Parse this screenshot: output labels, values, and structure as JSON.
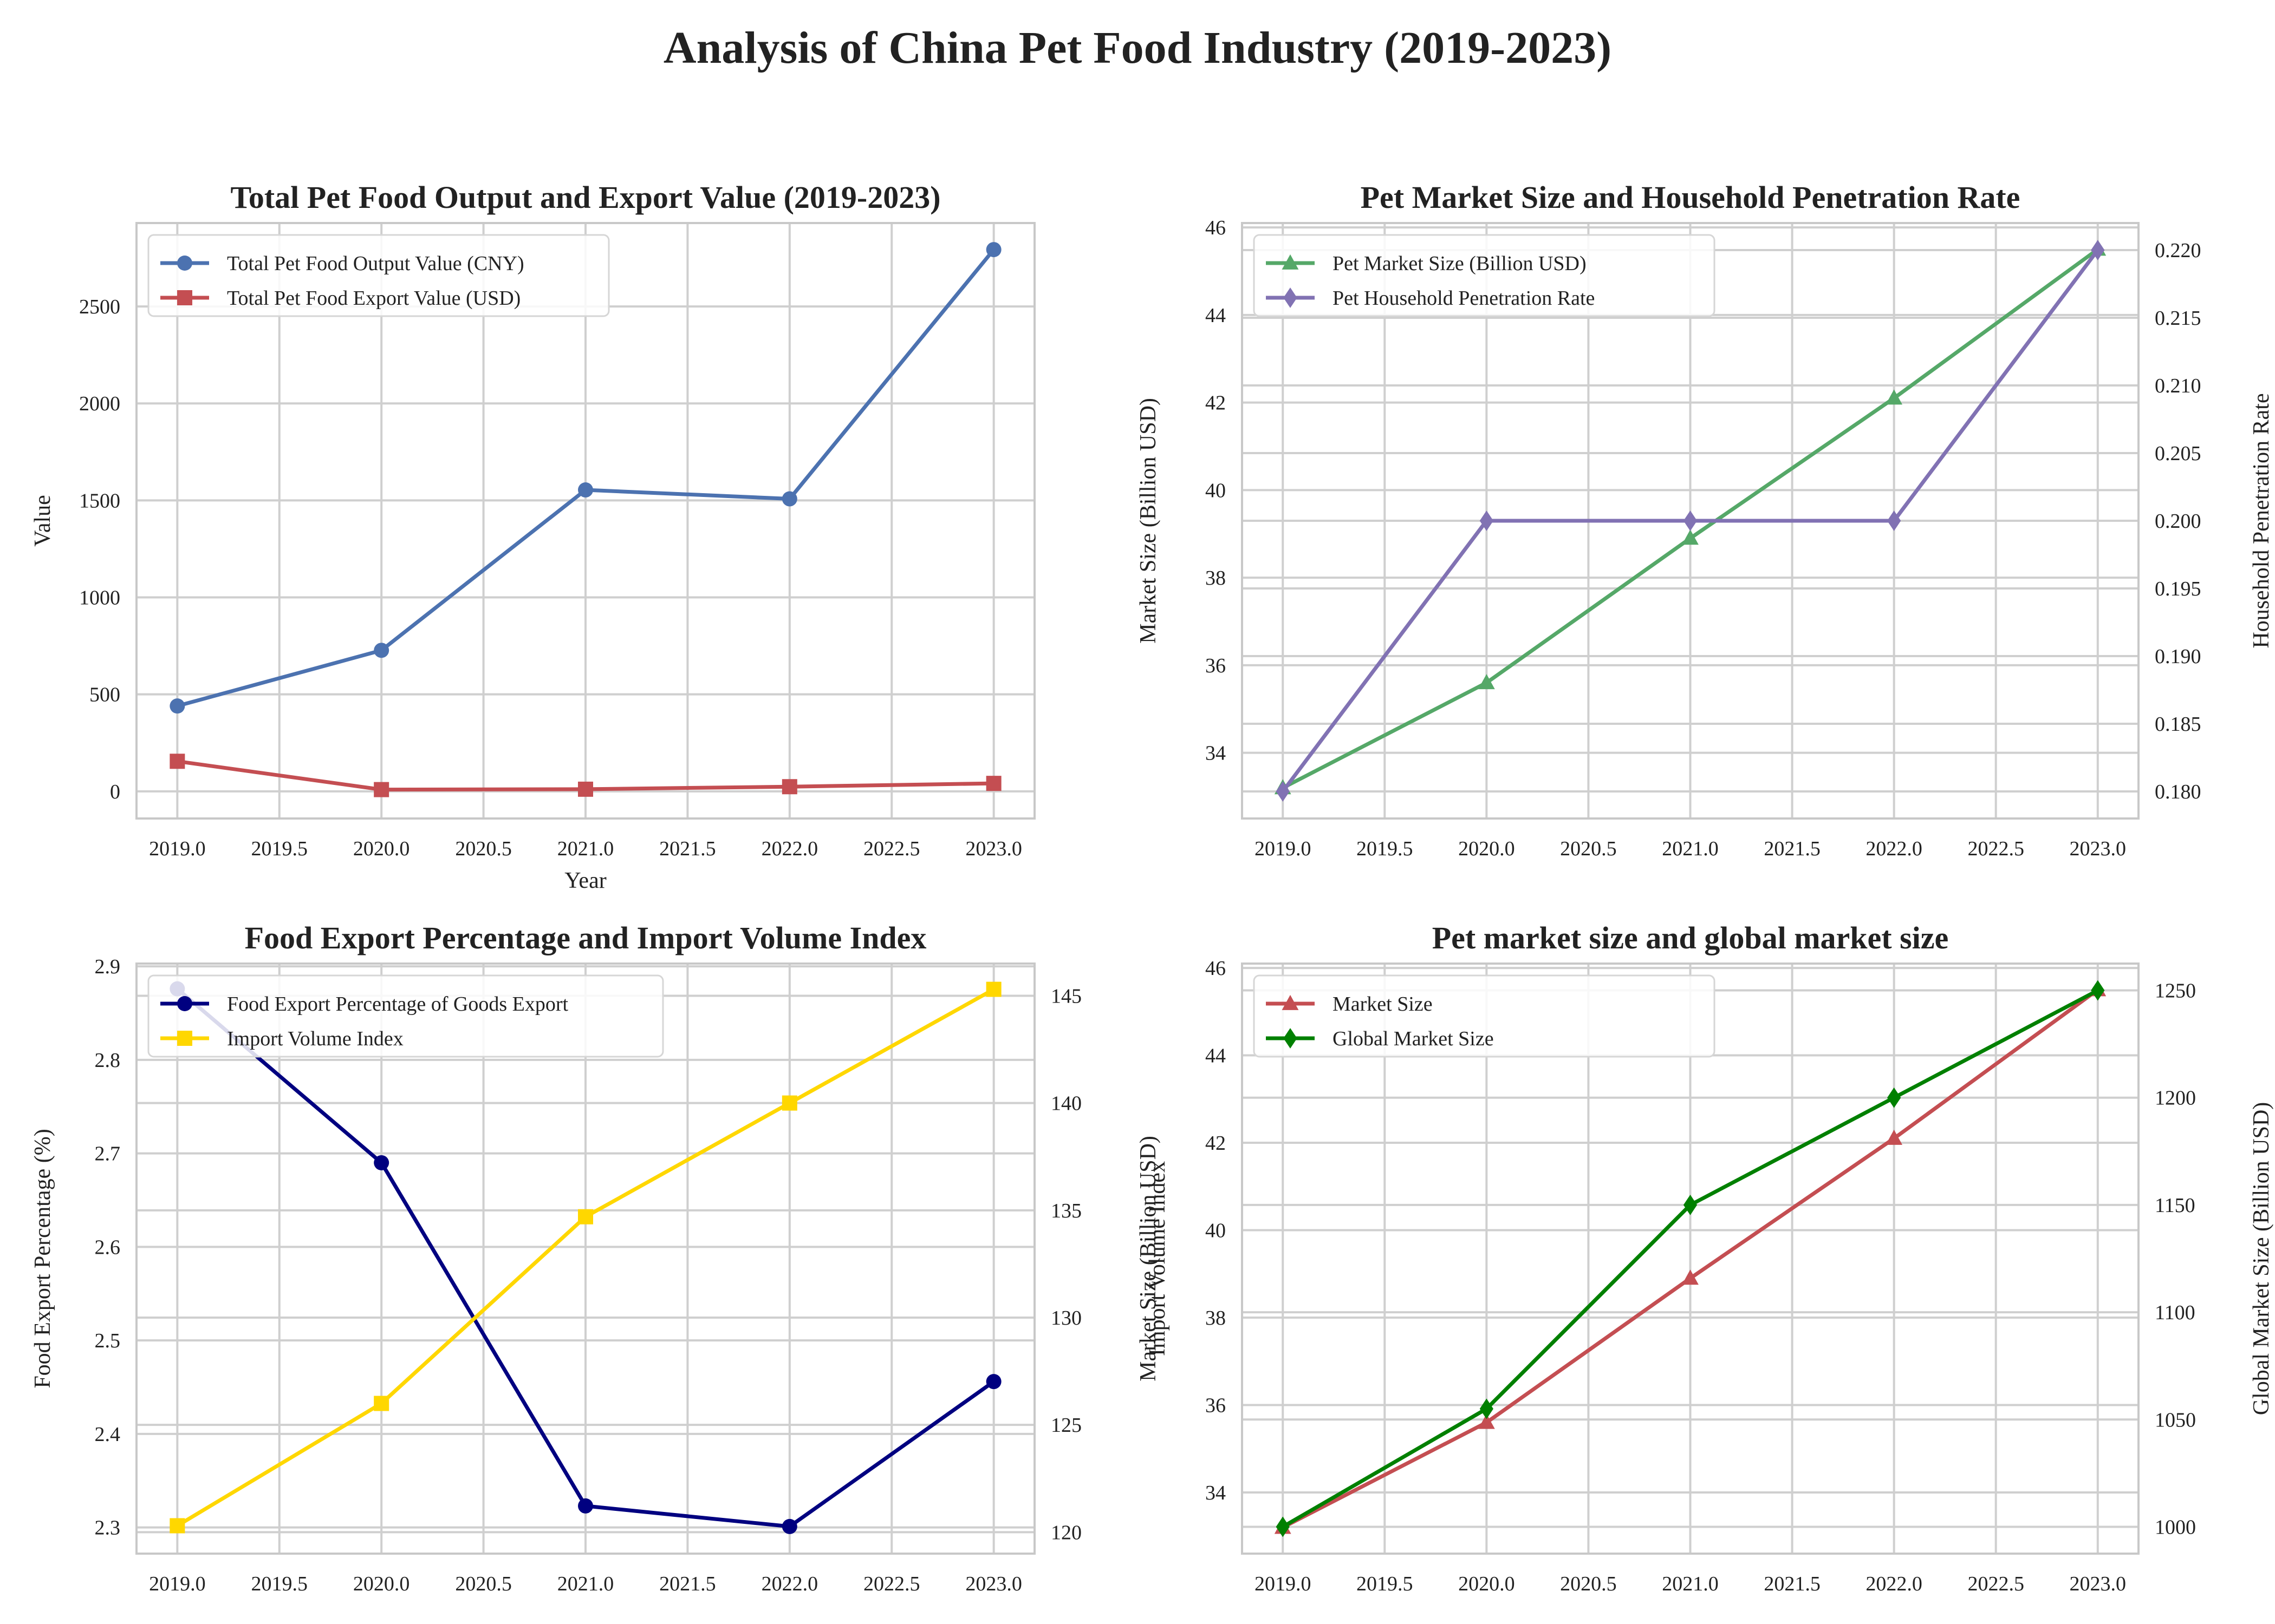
{
  "figure": {
    "title": "Analysis of China Pet Food Industry (2019-2023)"
  },
  "chart_data": [
    {
      "type": "line",
      "title": "Total Pet Food Output and Export Value (2019-2023)",
      "xlabel": "Year",
      "ylabel": "Value",
      "xlim": [
        2018.8,
        2023.2
      ],
      "xticks": [
        "2019.0",
        "2019.5",
        "2020.0",
        "2020.5",
        "2021.0",
        "2021.5",
        "2022.0",
        "2022.5",
        "2023.0"
      ],
      "ylim": [
        -140,
        2930
      ],
      "yticks": [
        "0",
        "500",
        "1000",
        "1500",
        "2000",
        "2500"
      ],
      "y2label": "",
      "legend": "top-left",
      "grid": true,
      "x": [
        2019,
        2020,
        2021,
        2022,
        2023
      ],
      "series": [
        {
          "name": "Total Pet Food Output Value (CNY)",
          "values": [
            440,
            727,
            1554,
            1508,
            2793
          ],
          "color": "#4C72B0",
          "marker": "circle",
          "axis": "left"
        },
        {
          "name": "Total Pet Food Export Value (USD)",
          "values": [
            155,
            9,
            11,
            24,
            41
          ],
          "color": "#C44E52",
          "marker": "square",
          "axis": "left"
        }
      ]
    },
    {
      "type": "line",
      "title": "Pet Market Size and Household Penetration Rate",
      "xlabel": "",
      "ylabel": "Market Size (Billion USD)",
      "y2label": "Household Penetration Rate",
      "xlim": [
        2018.8,
        2023.2
      ],
      "xticks": [
        "2019.0",
        "2019.5",
        "2020.0",
        "2020.5",
        "2021.0",
        "2021.5",
        "2022.0",
        "2022.5",
        "2023.0"
      ],
      "ylim": [
        32.5,
        46.1
      ],
      "yticks": [
        "34",
        "36",
        "38",
        "40",
        "42",
        "44",
        "46"
      ],
      "y2lim": [
        0.178,
        0.222
      ],
      "y2ticks": [
        "0.180",
        "0.185",
        "0.190",
        "0.195",
        "0.200",
        "0.205",
        "0.210",
        "0.215",
        "0.220"
      ],
      "legend": "top-left",
      "grid": true,
      "x": [
        2019,
        2020,
        2021,
        2022,
        2023
      ],
      "series": [
        {
          "name": "Pet Market Size (Billion USD)",
          "values": [
            33.2,
            35.6,
            38.9,
            42.1,
            45.5
          ],
          "color": "#55A868",
          "marker": "triangle",
          "axis": "left"
        },
        {
          "name": "Pet Household Penetration Rate",
          "values": [
            0.18,
            0.2,
            0.2,
            0.2,
            0.22
          ],
          "color": "#8172B3",
          "marker": "diamond",
          "axis": "right"
        }
      ]
    },
    {
      "type": "line",
      "title": "Food Export Percentage and Import Volume Index",
      "xlabel": "",
      "ylabel": "Food Export Percentage (%)",
      "y2label": "Import Volume Index",
      "xlim": [
        2018.8,
        2023.2
      ],
      "xticks": [
        "2019.0",
        "2019.5",
        "2020.0",
        "2020.5",
        "2021.0",
        "2021.5",
        "2022.0",
        "2022.5",
        "2023.0"
      ],
      "ylim": [
        2.272,
        2.903
      ],
      "yticks": [
        "2.3",
        "2.4",
        "2.5",
        "2.6",
        "2.7",
        "2.8",
        "2.9"
      ],
      "y2lim": [
        119.0,
        146.5
      ],
      "y2ticks": [
        "120",
        "125",
        "130",
        "135",
        "140",
        "145"
      ],
      "legend": "top-left",
      "grid": true,
      "x": [
        2019,
        2020,
        2021,
        2022,
        2023
      ],
      "series": [
        {
          "name": "Food Export Percentage of Goods Export",
          "values": [
            2.876,
            2.69,
            2.323,
            2.301,
            2.456
          ],
          "color": "#000080",
          "marker": "circle",
          "axis": "left"
        },
        {
          "name": "Import Volume Index",
          "values": [
            120.3,
            126.0,
            134.7,
            140.0,
            145.3
          ],
          "color": "#FFD700",
          "marker": "square",
          "axis": "right"
        }
      ]
    },
    {
      "type": "line",
      "title": "Pet market size and global market size",
      "xlabel": "",
      "ylabel": "Market Size (Billion USD)",
      "y2label": "Global Market Size (Billion USD)",
      "xlim": [
        2018.8,
        2023.2
      ],
      "xticks": [
        "2019.0",
        "2019.5",
        "2020.0",
        "2020.5",
        "2021.0",
        "2021.5",
        "2022.0",
        "2022.5",
        "2023.0"
      ],
      "ylim": [
        32.6,
        46.1
      ],
      "yticks": [
        "34",
        "36",
        "38",
        "40",
        "42",
        "44",
        "46"
      ],
      "y2lim": [
        987.5,
        1262.5
      ],
      "y2ticks": [
        "1000",
        "1050",
        "1100",
        "1150",
        "1200",
        "1250"
      ],
      "legend": "top-left",
      "grid": true,
      "x": [
        2019,
        2020,
        2021,
        2022,
        2023
      ],
      "series": [
        {
          "name": "Market Size",
          "values": [
            33.2,
            35.6,
            38.9,
            42.1,
            45.5
          ],
          "color": "#C44E52",
          "marker": "triangle",
          "axis": "left"
        },
        {
          "name": "Global Market Size",
          "values": [
            1000,
            1055,
            1150,
            1200,
            1250
          ],
          "color": "#008000",
          "marker": "diamond",
          "axis": "right"
        }
      ]
    }
  ]
}
